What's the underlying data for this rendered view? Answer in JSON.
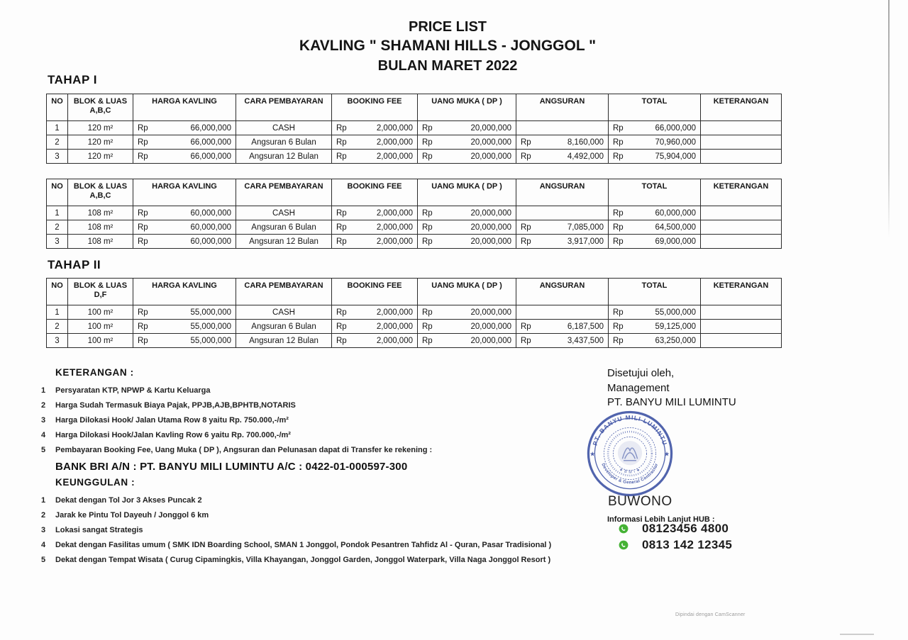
{
  "title": {
    "line1": "PRICE LIST",
    "line2": "KAVLING \" SHAMANI HILLS - JONGGOL \"",
    "line3": "BULAN MARET 2022"
  },
  "tahap1_heading": "TAHAP I",
  "tahap2_heading": "TAHAP II",
  "columns": [
    {
      "key": "no",
      "label": "NO"
    },
    {
      "key": "blok",
      "label": "BLOK & LUAS"
    },
    {
      "key": "harga",
      "label": "HARGA KAVLING"
    },
    {
      "key": "cara",
      "label": "CARA PEMBAYARAN"
    },
    {
      "key": "booking",
      "label": "BOOKING FEE"
    },
    {
      "key": "dp",
      "label": "UANG MUKA ( DP )"
    },
    {
      "key": "angsuran",
      "label": "ANGSURAN"
    },
    {
      "key": "total",
      "label": "TOTAL"
    },
    {
      "key": "ket",
      "label": "KETERANGAN"
    }
  ],
  "tables": [
    {
      "blok_sub": "A,B,C",
      "rows": [
        {
          "no": "1",
          "blok": "120 m²",
          "harga": [
            "Rp",
            "66,000,000"
          ],
          "cara": "CASH",
          "booking": [
            "Rp",
            "2,000,000"
          ],
          "dp": [
            "Rp",
            "20,000,000"
          ],
          "angsuran": [
            "",
            ""
          ],
          "total": [
            "Rp",
            "66,000,000"
          ],
          "ket": ""
        },
        {
          "no": "2",
          "blok": "120 m²",
          "harga": [
            "Rp",
            "66,000,000"
          ],
          "cara": "Angsuran 6 Bulan",
          "booking": [
            "Rp",
            "2,000,000"
          ],
          "dp": [
            "Rp",
            "20,000,000"
          ],
          "angsuran": [
            "Rp",
            "8,160,000"
          ],
          "total": [
            "Rp",
            "70,960,000"
          ],
          "ket": ""
        },
        {
          "no": "3",
          "blok": "120 m²",
          "harga": [
            "Rp",
            "66,000,000"
          ],
          "cara": "Angsuran 12 Bulan",
          "booking": [
            "Rp",
            "2,000,000"
          ],
          "dp": [
            "Rp",
            "20,000,000"
          ],
          "angsuran": [
            "Rp",
            "4,492,000"
          ],
          "total": [
            "Rp",
            "75,904,000"
          ],
          "ket": ""
        }
      ]
    },
    {
      "blok_sub": "A,B,C",
      "rows": [
        {
          "no": "1",
          "blok": "108 m²",
          "harga": [
            "Rp",
            "60,000,000"
          ],
          "cara": "CASH",
          "booking": [
            "Rp",
            "2,000,000"
          ],
          "dp": [
            "Rp",
            "20,000,000"
          ],
          "angsuran": [
            "",
            ""
          ],
          "total": [
            "Rp",
            "60,000,000"
          ],
          "ket": ""
        },
        {
          "no": "2",
          "blok": "108 m²",
          "harga": [
            "Rp",
            "60,000,000"
          ],
          "cara": "Angsuran 6 Bulan",
          "booking": [
            "Rp",
            "2,000,000"
          ],
          "dp": [
            "Rp",
            "20,000,000"
          ],
          "angsuran": [
            "Rp",
            "7,085,000"
          ],
          "total": [
            "Rp",
            "64,500,000"
          ],
          "ket": ""
        },
        {
          "no": "3",
          "blok": "108 m²",
          "harga": [
            "Rp",
            "60,000,000"
          ],
          "cara": "Angsuran 12 Bulan",
          "booking": [
            "Rp",
            "2,000,000"
          ],
          "dp": [
            "Rp",
            "20,000,000"
          ],
          "angsuran": [
            "Rp",
            "3,917,000"
          ],
          "total": [
            "Rp",
            "69,000,000"
          ],
          "ket": ""
        }
      ]
    },
    {
      "blok_sub": "D,F",
      "rows": [
        {
          "no": "1",
          "blok": "100 m²",
          "harga": [
            "Rp",
            "55,000,000"
          ],
          "cara": "CASH",
          "booking": [
            "Rp",
            "2,000,000"
          ],
          "dp": [
            "Rp",
            "20,000,000"
          ],
          "angsuran": [
            "",
            ""
          ],
          "total": [
            "Rp",
            "55,000,000"
          ],
          "ket": ""
        },
        {
          "no": "2",
          "blok": "100 m²",
          "harga": [
            "Rp",
            "55,000,000"
          ],
          "cara": "Angsuran 6 Bulan",
          "booking": [
            "Rp",
            "2,000,000"
          ],
          "dp": [
            "Rp",
            "20,000,000"
          ],
          "angsuran": [
            "Rp",
            "6,187,500"
          ],
          "total": [
            "Rp",
            "59,125,000"
          ],
          "ket": ""
        },
        {
          "no": "3",
          "blok": "100 m²",
          "harga": [
            "Rp",
            "55,000,000"
          ],
          "cara": "Angsuran 12 Bulan",
          "booking": [
            "Rp",
            "2,000,000"
          ],
          "dp": [
            "Rp",
            "20,000,000"
          ],
          "angsuran": [
            "Rp",
            "3,437,500"
          ],
          "total": [
            "Rp",
            "63,250,000"
          ],
          "ket": ""
        }
      ]
    }
  ],
  "keterangan": {
    "heading": "KETERANGAN :",
    "items": [
      {
        "no": "1",
        "text": "Persyaratan KTP, NPWP & Kartu Keluarga"
      },
      {
        "no": "2",
        "text": "Harga Sudah Termasuk Biaya Pajak, PPJB,AJB,BPHTB,NOTARIS"
      },
      {
        "no": "3",
        "text": "Harga Dilokasi Hook/ Jalan Utama Row 8 yaitu Rp. 750.000,-/m²"
      },
      {
        "no": "4",
        "text": "Harga Dilokasi Hook/Jalan Kavling Row 6 yaitu Rp. 700.000,-/m²"
      },
      {
        "no": "5",
        "text": "Pembayaran Booking Fee, Uang Muka ( DP ), Angsuran dan Pelunasan dapat di Transfer ke rekening :"
      }
    ],
    "bank_line": "BANK BRI A/N : PT. BANYU MILI LUMINTU A/C : 0422-01-000597-300"
  },
  "keunggulan": {
    "heading": "KEUNGGULAN :",
    "items": [
      {
        "no": "1",
        "text": "Dekat dengan Tol Jor 3 Akses Puncak 2"
      },
      {
        "no": "2",
        "text": "Jarak ke Pintu Tol Dayeuh / Jonggol 6 km"
      },
      {
        "no": "3",
        "text": "Lokasi sangat Strategis"
      },
      {
        "no": "4",
        "text": "Dekat dengan Fasilitas umum ( SMK IDN Boarding School, SMAN 1 Jonggol, Pondok Pesantren Tahfidz Al - Quran, Pasar Tradisional )"
      },
      {
        "no": "5",
        "text": "Dekat dengan Tempat Wisata ( Curug Cipamingkis, Villa Khayangan, Jonggol Garden, Jonggol Waterpark, Villa Naga Jonggol Resort )"
      }
    ]
  },
  "approval": {
    "line1": "Disetujui oleh,",
    "line2": "Management",
    "line3": "PT. BANYU MILI LUMINTU",
    "name": "BUWONO",
    "info_label": "Informasi Lebih Lanjut HUB :",
    "phones": [
      "08123456 4800",
      "0813 142 12345"
    ],
    "phone_icon_color": "#45b235"
  },
  "stamp": {
    "top_text": "PT. BANYU MILI LUMINTU",
    "bottom_text": "Developer & General Contractor",
    "inner_text": "★ B M I ★",
    "color": "#3a4fa3"
  },
  "watermark": "Dipindai dengan CamScanner"
}
